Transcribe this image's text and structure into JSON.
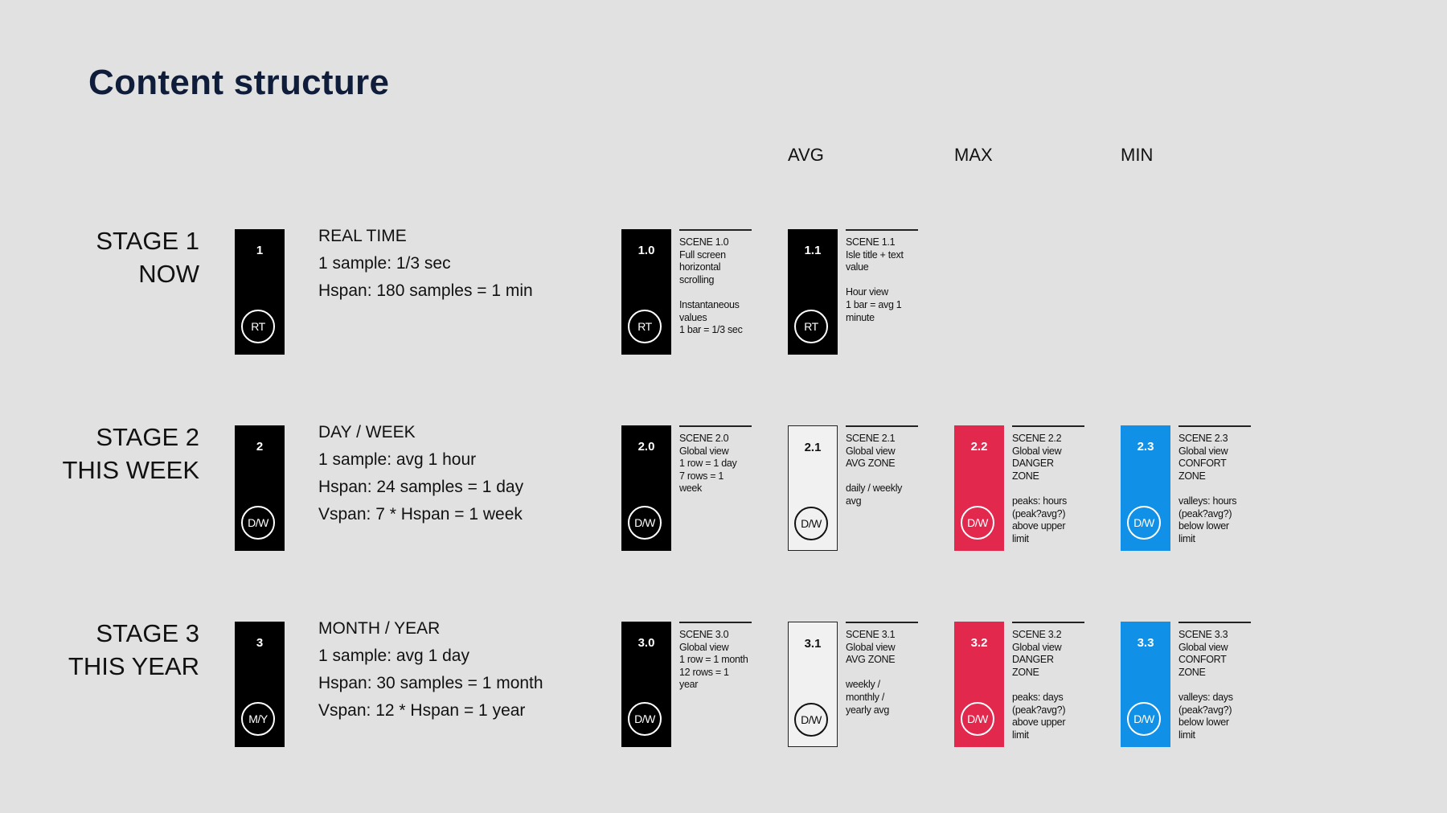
{
  "title": "Content structure",
  "columns": {
    "avg": "AVG",
    "max": "MAX",
    "min": "MIN"
  },
  "stages": [
    {
      "label": [
        "STAGE 1",
        "NOW"
      ],
      "card": {
        "num": "1",
        "badge": "RT"
      },
      "desc": [
        "REAL TIME",
        "1 sample: 1/3  sec",
        "Hspan: 180 samples = 1 min"
      ],
      "scenes": [
        {
          "num": "1.0",
          "badge": "RT",
          "style": "dark",
          "note": [
            "SCENE 1.0",
            "Full screen",
            "horizontal",
            "scrolling",
            "",
            "Instantaneous",
            "values",
            "1 bar = 1/3 sec"
          ]
        },
        {
          "num": "1.1",
          "badge": "RT",
          "style": "dark",
          "note": [
            "SCENE 1.1",
            "Isle title + text",
            "value",
            "",
            "Hour view",
            "1 bar = avg 1",
            "minute"
          ]
        }
      ]
    },
    {
      "label": [
        "STAGE 2",
        "THIS WEEK"
      ],
      "card": {
        "num": "2",
        "badge": "D/W"
      },
      "desc": [
        "DAY / WEEK",
        "1 sample: avg 1 hour",
        "Hspan: 24 samples = 1 day",
        "Vspan: 7 * Hspan = 1 week"
      ],
      "scenes": [
        {
          "num": "2.0",
          "badge": "D/W",
          "style": "dark",
          "note": [
            "SCENE 2.0",
            "Global view",
            "1 row = 1 day",
            "7 rows = 1",
            "week"
          ]
        },
        {
          "num": "2.1",
          "badge": "D/W",
          "style": "light",
          "note": [
            "SCENE 2.1",
            "Global view",
            "AVG ZONE",
            "",
            "daily / weekly",
            "avg"
          ]
        },
        {
          "num": "2.2",
          "badge": "D/W",
          "style": "red",
          "note": [
            "SCENE 2.2",
            "Global view",
            "DANGER",
            "ZONE",
            "",
            "peaks: hours",
            "(peak?avg?)",
            "above upper",
            "limit"
          ]
        },
        {
          "num": "2.3",
          "badge": "D/W",
          "style": "blue",
          "note": [
            "SCENE 2.3",
            "Global view",
            "CONFORT",
            "ZONE",
            "",
            "valleys: hours",
            "(peak?avg?)",
            "below lower",
            "limit"
          ]
        }
      ]
    },
    {
      "label": [
        "STAGE 3",
        "THIS YEAR"
      ],
      "card": {
        "num": "3",
        "badge": "M/Y"
      },
      "desc": [
        "MONTH / YEAR",
        "1 sample: avg 1 day",
        "Hspan: 30 samples = 1 month",
        "Vspan: 12 * Hspan = 1 year"
      ],
      "scenes": [
        {
          "num": "3.0",
          "badge": "D/W",
          "style": "dark",
          "note": [
            "SCENE 3.0",
            "Global view",
            "1 row = 1 month",
            "12 rows = 1",
            "year"
          ]
        },
        {
          "num": "3.1",
          "badge": "D/W",
          "style": "light",
          "note": [
            "SCENE 3.1",
            "Global view",
            "AVG ZONE",
            "",
            "weekly /",
            "monthly /",
            "yearly avg"
          ]
        },
        {
          "num": "3.2",
          "badge": "D/W",
          "style": "red",
          "note": [
            "SCENE 3.2",
            "Global view",
            "DANGER",
            "ZONE",
            "",
            "peaks: days",
            "(peak?avg?)",
            "above upper",
            "limit"
          ]
        },
        {
          "num": "3.3",
          "badge": "D/W",
          "style": "blue",
          "note": [
            "SCENE 3.3",
            "Global view",
            "CONFORT",
            "ZONE",
            "",
            "valleys: days",
            "(peak?avg?)",
            "below lower",
            "limit"
          ]
        }
      ]
    }
  ],
  "colors": {
    "title": "#0f1d3a",
    "danger": "#e3284e",
    "confort": "#1090e6",
    "background": "#e1e1e1"
  }
}
